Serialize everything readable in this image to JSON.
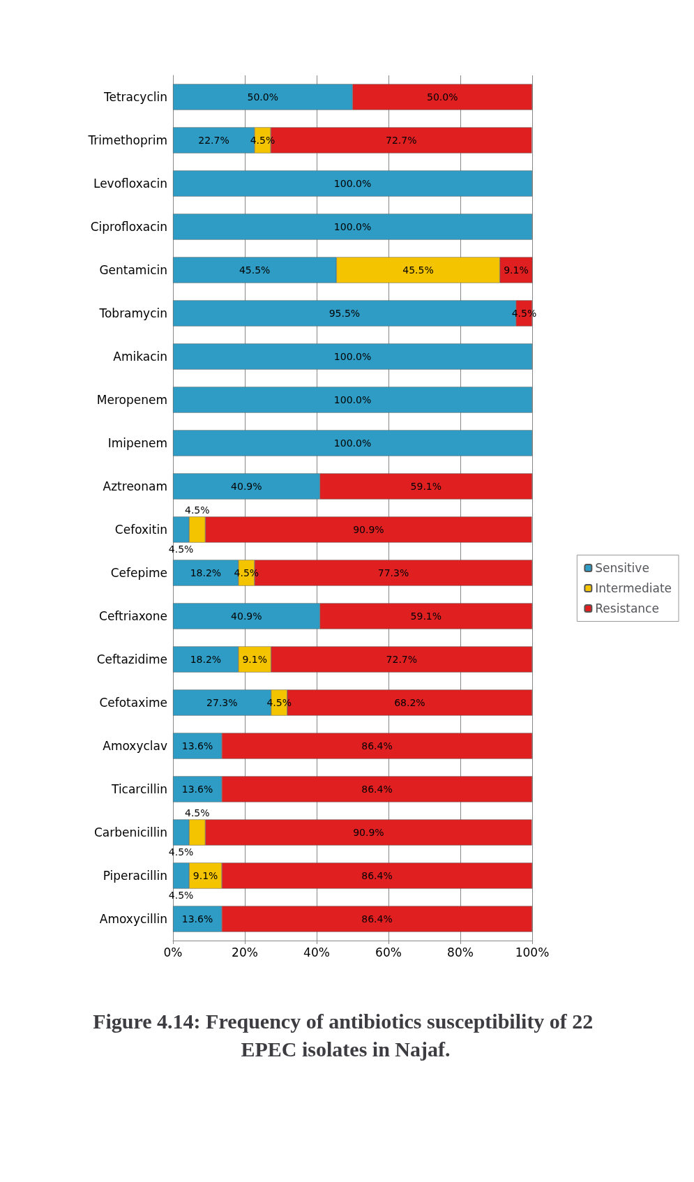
{
  "chart_data": {
    "type": "bar",
    "orientation": "horizontal",
    "stacked": true,
    "title": "Figure 4.14: Frequency of antibiotics susceptibility of 22 EPEC isolates in Najaf.",
    "categories": [
      "Tetracyclin",
      "Trimethoprim",
      "Levofloxacin",
      "Ciprofloxacin",
      "Gentamicin",
      "Tobramycin",
      "Amikacin",
      "Meropenem",
      "Imipenem",
      "Aztreonam",
      "Cefoxitin",
      "Cefepime",
      "Ceftriaxone",
      "Ceftazidime",
      "Cefotaxime",
      "Amoxyclav",
      "Ticarcillin",
      "Carbenicillin",
      "Piperacillin",
      "Amoxycillin"
    ],
    "series": [
      {
        "name": "Sensitive",
        "color": "#2e9cc4",
        "values": [
          50.0,
          22.7,
          100.0,
          100.0,
          45.5,
          95.5,
          100.0,
          100.0,
          100.0,
          40.9,
          4.5,
          18.2,
          40.9,
          18.2,
          27.3,
          13.6,
          13.6,
          4.5,
          4.5,
          13.6
        ],
        "value_labels": [
          "50.0%",
          "22.7%",
          "100.0%",
          "100.0%",
          "45.5%",
          "95.5%",
          "100.0%",
          "100.0%",
          "100.0%",
          "40.9%",
          "4.5%",
          "18.2%",
          "40.9%",
          "18.2%",
          "27.3%",
          "13.6%",
          "13.6%",
          "4.5%",
          "4.5%",
          "13.6%"
        ]
      },
      {
        "name": "Intermediate",
        "color": "#f5c400",
        "values": [
          null,
          4.5,
          null,
          null,
          45.5,
          null,
          null,
          null,
          null,
          null,
          4.5,
          4.5,
          null,
          9.1,
          4.5,
          null,
          null,
          4.5,
          9.1,
          null
        ],
        "value_labels": [
          null,
          "4.5%",
          null,
          null,
          "45.5%",
          null,
          null,
          null,
          null,
          null,
          "4.5%",
          "4.5%",
          null,
          "9.1%",
          "4.5%",
          null,
          null,
          "4.5%",
          "9.1%",
          null
        ]
      },
      {
        "name": "Resistance",
        "color": "#e02020",
        "values": [
          50.0,
          72.7,
          null,
          null,
          9.1,
          4.5,
          null,
          null,
          null,
          59.1,
          90.9,
          77.3,
          59.1,
          72.7,
          68.2,
          86.4,
          86.4,
          90.9,
          86.4,
          86.4
        ],
        "value_labels": [
          "50.0%",
          "72.7%",
          null,
          null,
          "9.1%",
          "4.5%",
          null,
          null,
          null,
          "59.1%",
          "90.9%",
          "77.3%",
          "59.1%",
          "72.7%",
          "68.2%",
          "86.4%",
          "86.4%",
          "90.9%",
          "86.4%",
          "86.4%"
        ]
      }
    ],
    "xlim": [
      0,
      100
    ],
    "xticks": [
      {
        "value": 0,
        "label": "0%"
      },
      {
        "value": 20,
        "label": "20%"
      },
      {
        "value": 40,
        "label": "40%"
      },
      {
        "value": 60,
        "label": "60%"
      },
      {
        "value": 80,
        "label": "80%"
      },
      {
        "value": 100,
        "label": "100%"
      }
    ],
    "grid": "x",
    "legend": "right"
  }
}
